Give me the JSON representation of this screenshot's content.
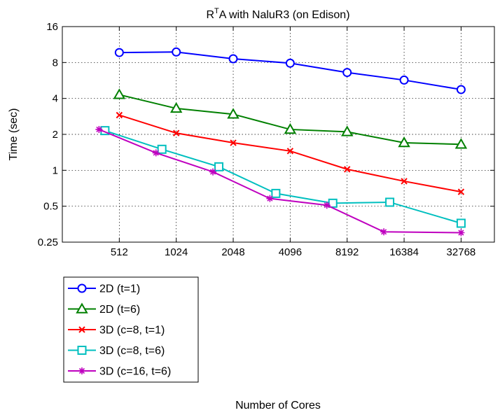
{
  "chart_data": {
    "type": "line",
    "title": {
      "base": "R",
      "sup": "T",
      "rest": "A with NaluR3 (on Edison)"
    },
    "xlabel": "Number of Cores",
    "ylabel": "Time (sec)",
    "xscale": "log2",
    "yscale": "log2",
    "xlim": [
      256,
      49152
    ],
    "ylim": [
      0.25,
      16
    ],
    "xticks": [
      512,
      1024,
      2048,
      4096,
      8192,
      16384,
      32768
    ],
    "xtick_labels": [
      "512",
      "1024",
      "2048",
      "4096",
      "8192",
      "16384",
      "32768"
    ],
    "yticks": [
      0.25,
      0.5,
      1,
      2,
      4,
      8,
      16
    ],
    "ytick_labels": [
      "0.25",
      "0.5",
      "1",
      "2",
      "4",
      "8",
      "16"
    ],
    "grid": true,
    "legend_position": "bottom-left",
    "series": [
      {
        "name": "2D (t=1)",
        "color": "#0000ff",
        "marker": "circle",
        "x": [
          512,
          1024,
          2048,
          4096,
          8192,
          16384,
          32768
        ],
        "y": [
          9.7,
          9.8,
          8.6,
          7.9,
          6.6,
          5.7,
          4.75
        ]
      },
      {
        "name": "2D (t=6)",
        "color": "#008000",
        "marker": "triangle",
        "x": [
          512,
          1024,
          2048,
          4096,
          8192,
          16384,
          32768
        ],
        "y": [
          4.3,
          3.3,
          2.95,
          2.2,
          2.1,
          1.7,
          1.65
        ]
      },
      {
        "name": "3D (c=8, t=1)",
        "color": "#ff0000",
        "marker": "x",
        "x": [
          512,
          1024,
          2048,
          4096,
          8192,
          16384,
          32768
        ],
        "y": [
          2.9,
          2.05,
          1.7,
          1.45,
          1.02,
          0.81,
          0.66
        ]
      },
      {
        "name": "3D (c=8, t=6)",
        "color": "#00bfbf",
        "marker": "square",
        "x": [
          430,
          860,
          1720,
          3440,
          6880,
          13760,
          32768
        ],
        "y": [
          2.15,
          1.5,
          1.07,
          0.64,
          0.53,
          0.54,
          0.36
        ]
      },
      {
        "name": "3D (c=16, t=6)",
        "color": "#bf00bf",
        "marker": "star",
        "x": [
          400,
          800,
          1600,
          3200,
          6400,
          12800,
          32768
        ],
        "y": [
          2.2,
          1.4,
          0.97,
          0.58,
          0.51,
          0.305,
          0.3
        ]
      }
    ]
  }
}
